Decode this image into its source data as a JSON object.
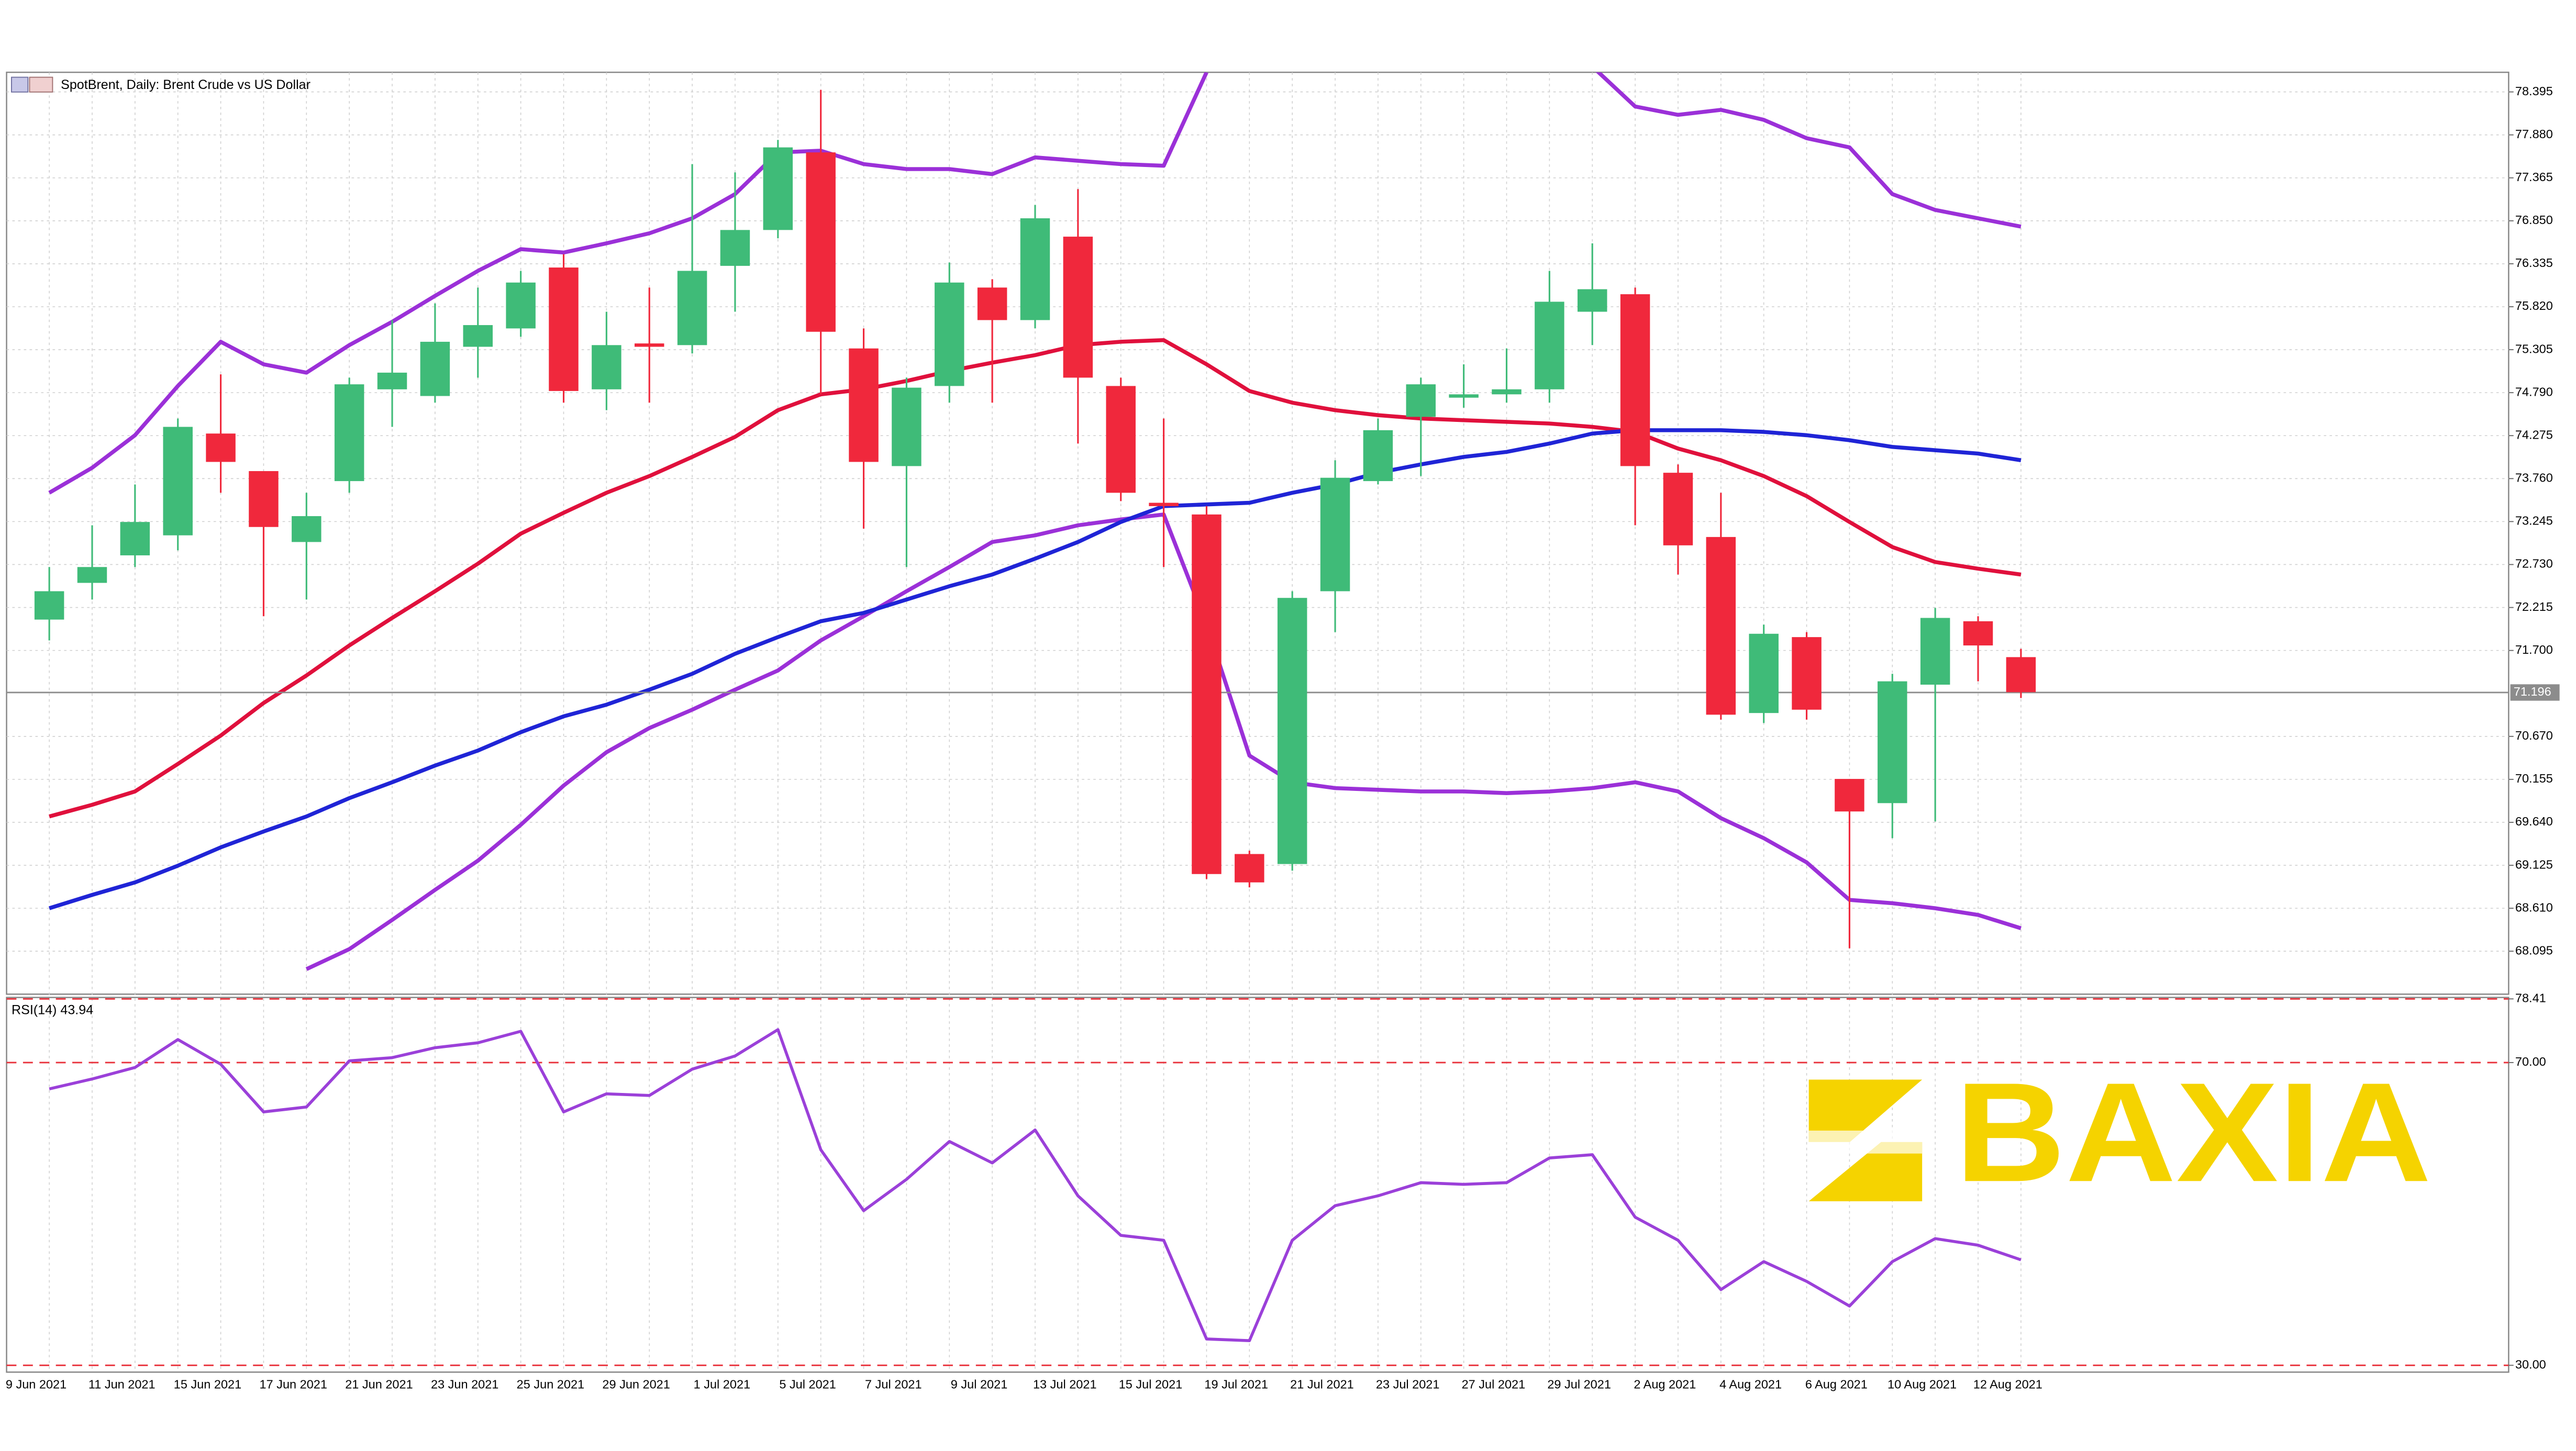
{
  "chart_data": [
    {
      "type": "candlestick",
      "title": "SpotBrent, Daily: Brent Crude vs US Dollar",
      "categories": [
        "9 Jun 2021",
        null,
        "11 Jun 2021",
        null,
        "15 Jun 2021",
        null,
        "17 Jun 2021",
        null,
        "21 Jun 2021",
        null,
        "23 Jun 2021",
        null,
        "25 Jun 2021",
        null,
        "29 Jun 2021",
        null,
        "1 Jul 2021",
        null,
        "5 Jul 2021",
        null,
        "7 Jul 2021",
        null,
        "9 Jul 2021",
        null,
        "13 Jul 2021",
        null,
        "15 Jul 2021",
        null,
        "19 Jul 2021",
        null,
        "21 Jul 2021",
        null,
        "23 Jul 2021",
        null,
        "27 Jul 2021",
        null,
        "29 Jul 2021",
        null,
        "2 Aug 2021",
        null,
        "4 Aug 2021",
        null,
        "6 Aug 2021",
        null,
        "10 Aug 2021",
        null,
        "12 Aug 2021"
      ],
      "open": [
        72.07,
        72.51,
        72.84,
        73.08,
        74.3,
        73.85,
        73.0,
        73.73,
        74.83,
        74.75,
        75.34,
        75.56,
        76.29,
        74.83,
        75.38,
        75.36,
        76.31,
        76.74,
        77.67,
        75.32,
        73.91,
        74.87,
        76.05,
        75.66,
        76.66,
        74.87,
        73.47,
        73.33,
        69.26,
        69.14,
        72.41,
        73.73,
        74.5,
        74.73,
        74.77,
        74.83,
        75.76,
        75.97,
        73.83,
        73.06,
        70.95,
        71.86,
        70.16,
        69.87,
        71.29,
        72.05,
        71.62
      ],
      "high": [
        72.7,
        73.2,
        73.69,
        74.48,
        75.01,
        73.85,
        73.59,
        74.97,
        75.66,
        75.86,
        76.05,
        76.25,
        76.45,
        75.76,
        76.05,
        77.53,
        77.43,
        77.82,
        78.42,
        75.56,
        74.97,
        76.35,
        76.15,
        77.04,
        77.23,
        74.97,
        74.48,
        73.43,
        69.3,
        72.41,
        73.98,
        74.48,
        74.97,
        75.13,
        75.32,
        76.25,
        76.58,
        76.05,
        73.93,
        73.59,
        72.01,
        71.92,
        70.16,
        71.42,
        72.21,
        72.11,
        71.72
      ],
      "low": [
        71.82,
        72.31,
        72.7,
        72.9,
        73.59,
        72.11,
        72.31,
        73.59,
        74.38,
        74.67,
        74.97,
        75.46,
        74.67,
        74.58,
        74.67,
        75.26,
        75.76,
        76.64,
        74.77,
        73.16,
        72.7,
        74.67,
        74.67,
        75.56,
        74.18,
        73.49,
        72.7,
        68.96,
        68.86,
        69.06,
        71.92,
        73.69,
        73.79,
        74.61,
        74.67,
        74.67,
        75.36,
        73.2,
        72.61,
        70.87,
        70.83,
        70.87,
        68.13,
        69.45,
        69.65,
        71.33,
        71.13
      ],
      "close": [
        72.41,
        72.7,
        73.24,
        74.38,
        73.96,
        73.18,
        73.31,
        74.89,
        75.03,
        75.4,
        75.6,
        76.11,
        74.81,
        75.36,
        75.34,
        76.25,
        76.74,
        77.73,
        75.52,
        73.96,
        74.85,
        76.11,
        75.66,
        76.88,
        74.97,
        73.59,
        73.43,
        69.02,
        68.92,
        72.33,
        73.77,
        74.34,
        74.89,
        74.77,
        74.83,
        75.88,
        76.03,
        73.91,
        72.96,
        70.93,
        71.9,
        70.99,
        69.77,
        71.33,
        72.09,
        71.76,
        71.2
      ],
      "up_color": "#3fbb78",
      "down_color": "#f0283c",
      "series": [
        {
          "color": "#9b30d8",
          "values": [
            73.59,
            73.89,
            74.28,
            74.87,
            75.4,
            75.13,
            75.03,
            75.36,
            75.64,
            75.95,
            76.25,
            76.51,
            76.47,
            76.58,
            76.7,
            76.88,
            77.17,
            77.67,
            77.69,
            77.53,
            77.47,
            77.47,
            77.41,
            77.61,
            77.57,
            77.53,
            77.51,
            78.63,
            null,
            null,
            null,
            null,
            null,
            null,
            null,
            null,
            78.7,
            78.22,
            78.12,
            78.18,
            78.06,
            77.84,
            77.73,
            77.17,
            76.98,
            76.88,
            76.78
          ]
        },
        {
          "color": "#9b30d8",
          "values": [
            null,
            null,
            null,
            null,
            null,
            null,
            67.88,
            68.12,
            68.47,
            68.83,
            69.18,
            69.61,
            70.08,
            70.48,
            70.77,
            70.99,
            71.23,
            71.46,
            71.82,
            72.11,
            72.41,
            72.7,
            73.0,
            73.08,
            73.2,
            73.27,
            73.33,
            72.01,
            70.44,
            70.12,
            70.05,
            70.03,
            70.01,
            70.01,
            69.99,
            70.01,
            70.05,
            70.12,
            70.01,
            69.69,
            69.45,
            69.16,
            68.71,
            68.67,
            68.61,
            68.53,
            68.37
          ]
        },
        {
          "color": "#e0103c",
          "values": [
            69.71,
            69.85,
            70.01,
            70.34,
            70.68,
            71.07,
            71.4,
            71.76,
            72.09,
            72.41,
            72.74,
            73.1,
            73.35,
            73.59,
            73.79,
            74.02,
            74.26,
            74.58,
            74.77,
            74.83,
            74.93,
            75.05,
            75.15,
            75.24,
            75.36,
            75.4,
            75.42,
            75.13,
            74.81,
            74.67,
            74.58,
            74.52,
            74.48,
            74.46,
            74.44,
            74.42,
            74.38,
            74.32,
            74.12,
            73.98,
            73.79,
            73.55,
            73.24,
            72.94,
            72.76,
            72.68,
            72.61
          ]
        },
        {
          "color": "#1f24d6",
          "values": [
            68.61,
            68.77,
            68.92,
            69.12,
            69.34,
            69.53,
            69.71,
            69.93,
            70.12,
            70.32,
            70.5,
            70.72,
            70.91,
            71.05,
            71.23,
            71.42,
            71.66,
            71.86,
            72.05,
            72.15,
            72.31,
            72.47,
            72.61,
            72.8,
            73.0,
            73.24,
            73.43,
            73.45,
            73.47,
            73.59,
            73.69,
            73.83,
            73.93,
            74.02,
            74.08,
            74.18,
            74.3,
            74.34,
            74.34,
            74.34,
            74.32,
            74.28,
            74.22,
            74.14,
            74.1,
            74.06,
            73.98
          ]
        }
      ],
      "ylim": [
        67.58,
        78.63
      ],
      "yticks": [
        78.395,
        {
          "value": 77.88,
          "label": "77.880"
        },
        77.365,
        {
          "value": 76.85,
          "label": "76.850"
        },
        76.335,
        {
          "value": 75.82,
          "label": "75.820"
        },
        75.305,
        {
          "value": 74.79,
          "label": "74.790"
        },
        74.275,
        {
          "value": 73.76,
          "label": "73.760"
        },
        73.245,
        {
          "value": 72.73,
          "label": "72.730"
        },
        72.215,
        {
          "value": 71.7,
          "label": "71.700"
        },
        {
          "value": 70.67,
          "label": "70.670"
        },
        70.155,
        {
          "value": 69.64,
          "label": "69.640"
        },
        69.125,
        {
          "value": 68.61,
          "label": "68.610"
        },
        68.095
      ],
      "current_price": 71.196,
      "grid": true,
      "watermark": "BAXIA",
      "watermark_color": "#f5d300"
    },
    {
      "type": "line",
      "title": "RSI(14) 43.94",
      "color": "#9b40d9",
      "values": [
        66.52,
        67.83,
        69.35,
        73.04,
        69.78,
        63.48,
        64.13,
        70.22,
        70.65,
        71.96,
        72.61,
        74.13,
        63.48,
        65.87,
        65.65,
        69.13,
        70.87,
        74.35,
        58.48,
        50.43,
        54.57,
        59.57,
        56.74,
        61.09,
        52.39,
        47.17,
        46.52,
        33.48,
        33.26,
        46.52,
        51.09,
        52.39,
        54.13,
        53.91,
        54.13,
        57.39,
        57.83,
        49.57,
        46.52,
        40.0,
        43.7,
        41.09,
        37.83,
        43.7,
        46.74,
        45.87,
        43.94
      ],
      "ylim": [
        29.1,
        78.6
      ],
      "yticks": [
        78.41,
        {
          "value": 70,
          "label": "70.00"
        },
        {
          "value": 30,
          "label": "30.00"
        }
      ],
      "level_color": "#e8323c"
    }
  ]
}
